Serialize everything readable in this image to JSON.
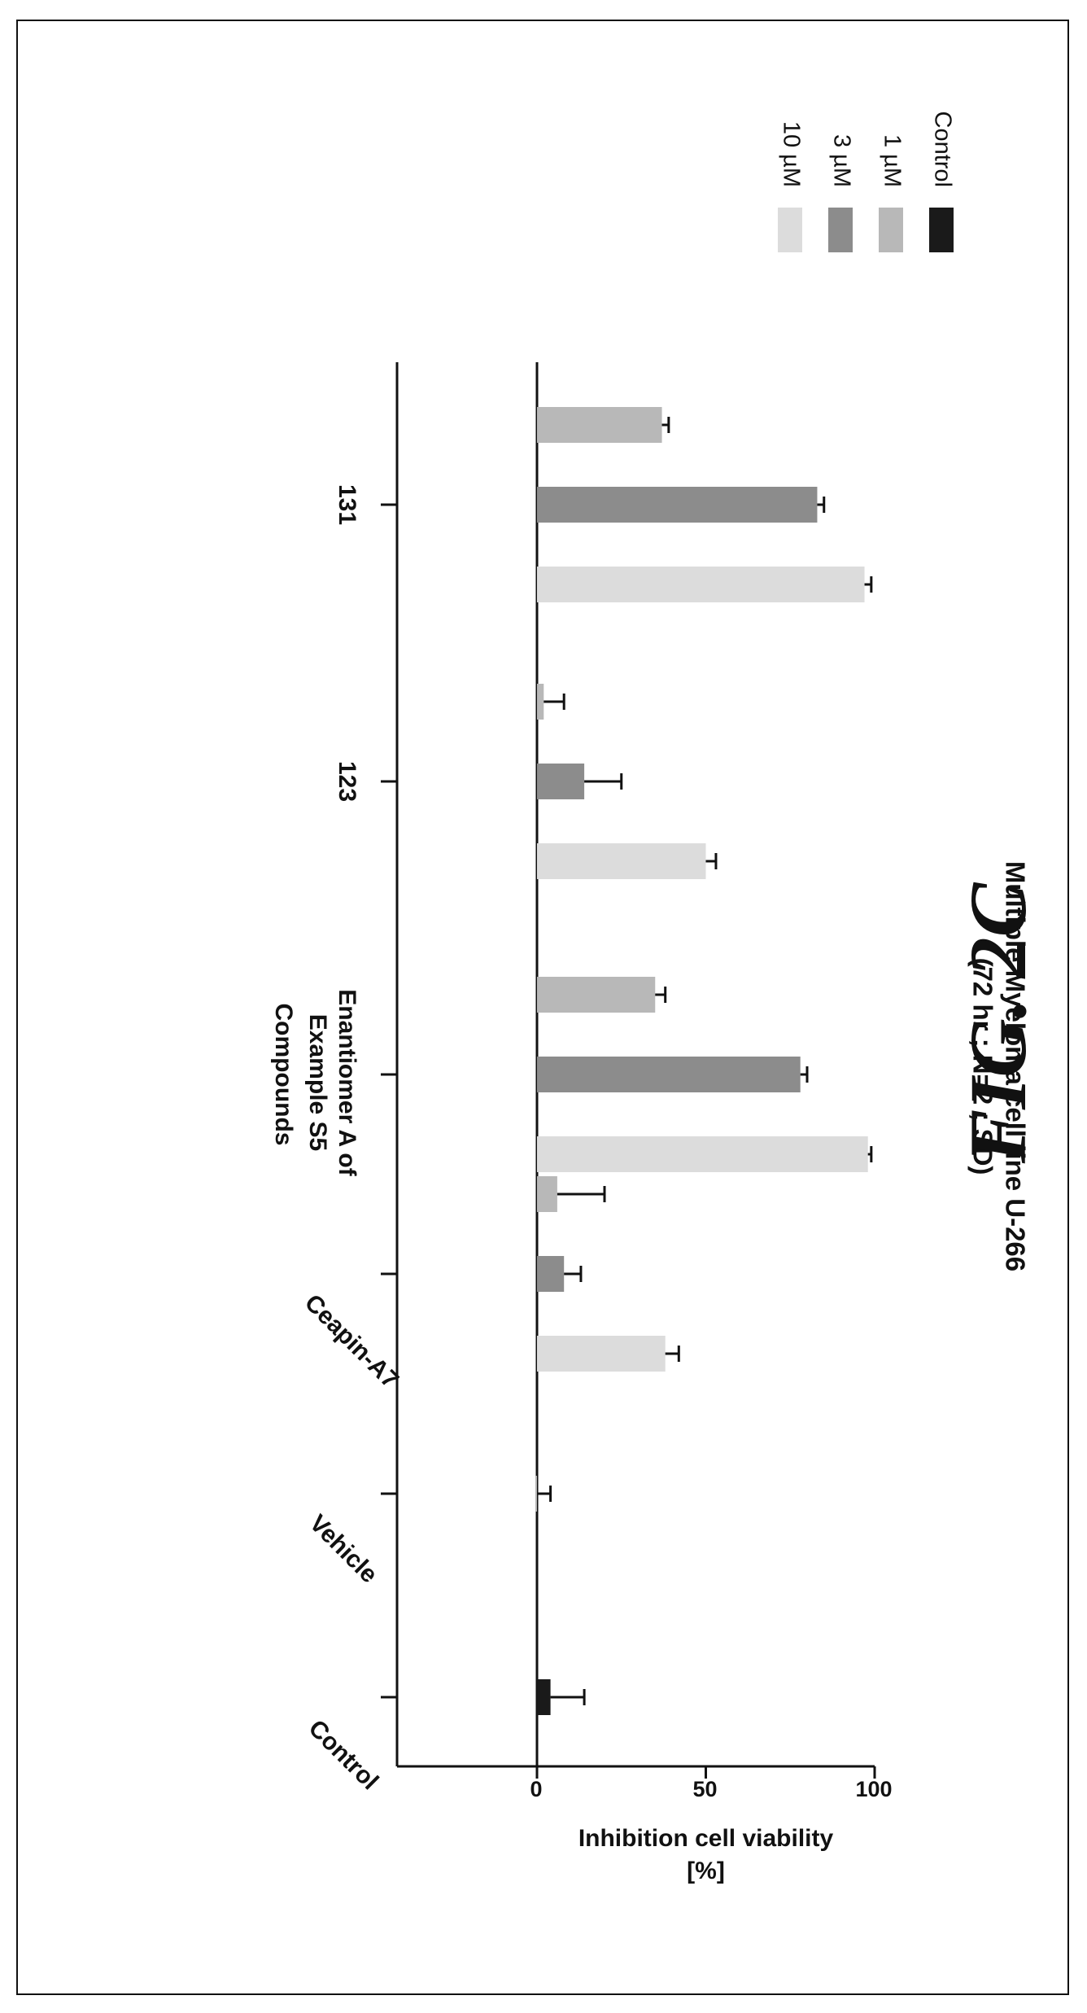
{
  "figure": {
    "label": "FIG. 2C"
  },
  "chart_data": {
    "type": "bar",
    "title": "Multiple Myeloma cell line U-266",
    "subtitle": "(72 hr ; N=2 ; SD)",
    "xlabel": "Compounds",
    "ylabel": "Inhibition cell viability",
    "ylabel_unit": "[%]",
    "ylim": [
      0,
      100
    ],
    "yticks": [
      0,
      50,
      100
    ],
    "grid": false,
    "legend_position": "top-right",
    "categories": [
      "Control",
      "Vehicle",
      "Ceapin-A7",
      "Enantiomer A of Example S5",
      "123",
      "131"
    ],
    "category_lines": [
      [
        "Control"
      ],
      [
        "Vehicle"
      ],
      [
        "Ceapin-A7"
      ],
      [
        "Enantiomer A of",
        "Example S5"
      ],
      [
        "123"
      ],
      [
        "131"
      ]
    ],
    "series": [
      {
        "name": "Control",
        "color": "#1a1a1a",
        "values": [
          4,
          null,
          null,
          null,
          null,
          null
        ],
        "errors": [
          10,
          null,
          null,
          null,
          null,
          null
        ]
      },
      {
        "name": "1 µM",
        "color": "#b8b8b8",
        "values": [
          null,
          0,
          6,
          38,
          2,
          null
        ],
        "errors": [
          null,
          4,
          14,
          4,
          6,
          null
        ]
      },
      {
        "name": "3 µM",
        "color": "#8c8c8c",
        "values": [
          null,
          null,
          8,
          35,
          14,
          37
        ],
        "errors": [
          null,
          null,
          5,
          3,
          11,
          2
        ]
      },
      {
        "name": "10 µM",
        "color": "#dcdcdc",
        "values": [
          null,
          null,
          null,
          98,
          50,
          97
        ],
        "errors": [
          null,
          null,
          null,
          1,
          3,
          2
        ]
      }
    ],
    "bar_groups": [
      {
        "category": "Control",
        "bars": [
          [
            "Control",
            4,
            10
          ]
        ]
      },
      {
        "category": "Vehicle",
        "bars": [
          [
            "1 µM",
            0,
            4
          ]
        ]
      },
      {
        "category": "Ceapin-A7",
        "bars": [
          [
            "1 µM",
            6,
            14
          ],
          [
            "3 µM",
            8,
            5
          ],
          [
            "10 µM",
            38,
            4
          ]
        ]
      },
      {
        "category": "Enantiomer A of Example S5",
        "bars": [
          [
            "1 µM",
            35,
            3
          ],
          [
            "3 µM",
            78,
            2
          ],
          [
            "10 µM",
            98,
            1
          ]
        ]
      },
      {
        "category": "123",
        "bars": [
          [
            "1 µM",
            2,
            6
          ],
          [
            "3 µM",
            14,
            11
          ],
          [
            "10 µM",
            50,
            3
          ]
        ]
      },
      {
        "category": "131",
        "bars": [
          [
            "1 µM",
            37,
            2
          ],
          [
            "3 µM",
            83,
            2
          ],
          [
            "10 µM",
            97,
            2
          ]
        ]
      }
    ]
  }
}
